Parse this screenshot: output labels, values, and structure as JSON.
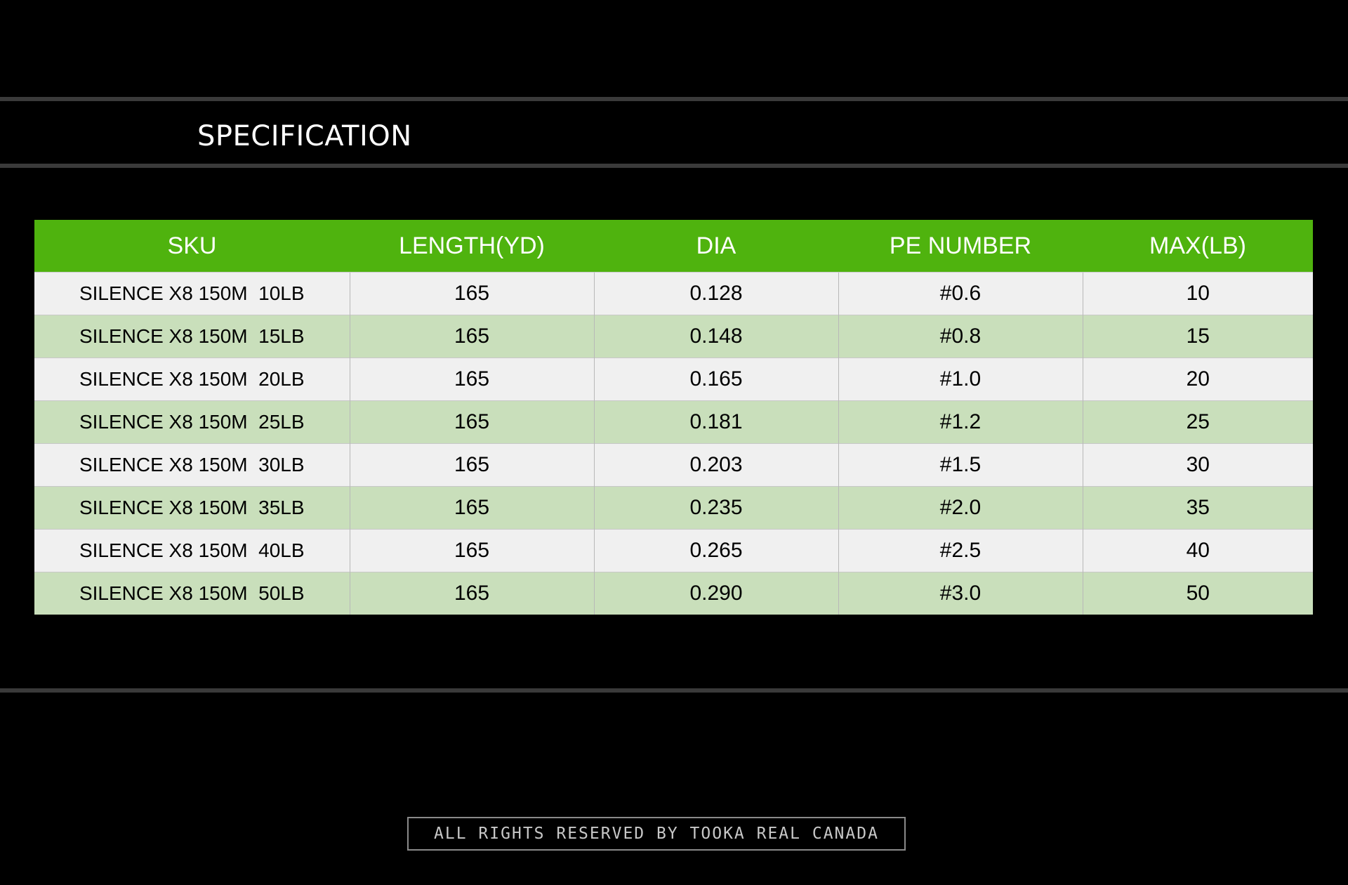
{
  "page": {
    "title": "SPECIFICATION",
    "footer": "ALL RIGHTS RESERVED BY TOOKA REAL CANADA"
  },
  "colors": {
    "background": "#000000",
    "header": "#4fb30e",
    "row_light": "#f0f0f0",
    "row_green": "#c9dfbb",
    "rule": "#3a3a3a"
  },
  "chart_data": {
    "type": "table",
    "columns": [
      "SKU",
      "LENGTH(YD)",
      "DIA",
      "PE NUMBER",
      "MAX(LB)"
    ],
    "rows": [
      [
        "SILENCE X8 150M  10LB",
        "165",
        "0.128",
        "#0.6",
        "10"
      ],
      [
        "SILENCE X8 150M  15LB",
        "165",
        "0.148",
        "#0.8",
        "15"
      ],
      [
        "SILENCE X8 150M  20LB",
        "165",
        "0.165",
        "#1.0",
        "20"
      ],
      [
        "SILENCE X8 150M  25LB",
        "165",
        "0.181",
        "#1.2",
        "25"
      ],
      [
        "SILENCE X8 150M  30LB",
        "165",
        "0.203",
        "#1.5",
        "30"
      ],
      [
        "SILENCE X8 150M  35LB",
        "165",
        "0.235",
        "#2.0",
        "35"
      ],
      [
        "SILENCE X8 150M  40LB",
        "165",
        "0.265",
        "#2.5",
        "40"
      ],
      [
        "SILENCE X8 150M  50LB",
        "165",
        "0.290",
        "#3.0",
        "50"
      ]
    ]
  }
}
